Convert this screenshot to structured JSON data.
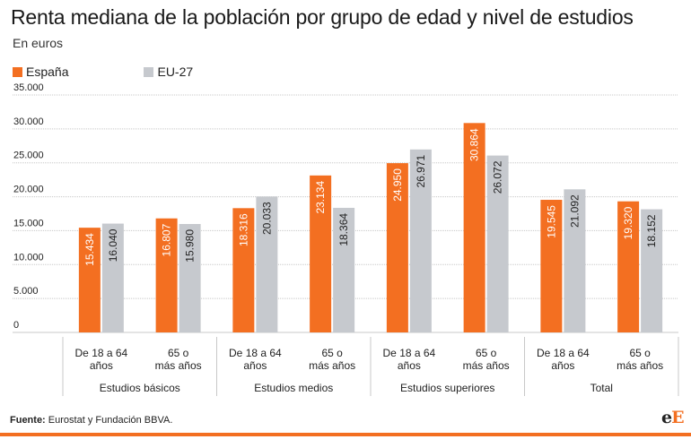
{
  "header": {
    "title": "Renta mediana de la población por grupo de edad y nivel de estudios",
    "subtitle": "En euros"
  },
  "footer": {
    "source_label": "Fuente:",
    "source_text": "Eurostat y Fundación BBVA."
  },
  "logo": {
    "first": "e",
    "second": "E"
  },
  "colors": {
    "espana": "#f36f21",
    "eu27": "#c6c9ce",
    "accent": "#f36f21",
    "gridline": "#c8c8c8"
  },
  "chart_data": {
    "type": "bar",
    "title": "Renta mediana de la población por grupo de edad y nivel de estudios",
    "subtitle": "En euros",
    "legend_position": "top-left",
    "grid": true,
    "ylim": [
      0,
      35000
    ],
    "yticks": [
      0,
      5000,
      10000,
      15000,
      20000,
      25000,
      30000,
      35000
    ],
    "ytick_labels": [
      "0",
      "5.000",
      "10.000",
      "15.000",
      "20.000",
      "25.000",
      "30.000",
      "35.000"
    ],
    "categories": [
      [
        "De 18 a 64",
        "años"
      ],
      [
        "65 o",
        "más años"
      ],
      [
        "De 18 a 64",
        "años"
      ],
      [
        "65 o",
        "más años"
      ],
      [
        "De 18 a 64",
        "años"
      ],
      [
        "65 o",
        "más años"
      ],
      [
        "De 18 a 64",
        "años"
      ],
      [
        "65 o",
        "más años"
      ]
    ],
    "groups": [
      {
        "label": "Estudios básicos",
        "span": 2
      },
      {
        "label": "Estudios medios",
        "span": 2
      },
      {
        "label": "Estudios superiores",
        "span": 2
      },
      {
        "label": "Total",
        "span": 2
      }
    ],
    "series": [
      {
        "name": "España",
        "values": [
          15434,
          16807,
          18316,
          23134,
          24950,
          30864,
          19545,
          19320
        ],
        "labels": [
          "15.434",
          "16.807",
          "18.316",
          "23.134",
          "24.950",
          "30.864",
          "19.545",
          "19.320"
        ]
      },
      {
        "name": "EU-27",
        "values": [
          16040,
          15980,
          20033,
          18364,
          26971,
          26072,
          21092,
          18152
        ],
        "labels": [
          "16.040",
          "15.980",
          "20.033",
          "18.364",
          "26.971",
          "26.072",
          "21.092",
          "18.152"
        ]
      }
    ]
  }
}
